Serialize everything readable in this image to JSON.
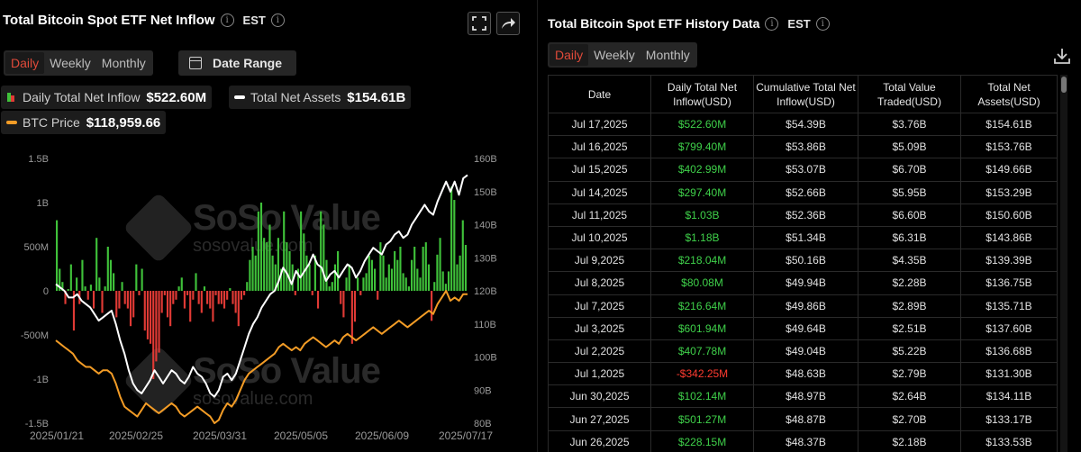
{
  "left": {
    "title": "Total Bitcoin Spot ETF Net Inflow",
    "tz": "EST",
    "tabs": [
      "Daily",
      "Weekly",
      "Monthly"
    ],
    "active_tab": "Daily",
    "date_range_label": "Date Range",
    "legend": {
      "inflow_label": "Daily Total Net Inflow",
      "inflow_value": "$522.60M",
      "assets_label": "Total Net Assets",
      "assets_value": "$154.61B",
      "price_label": "BTC Price",
      "price_value": "$118,959.66"
    }
  },
  "right": {
    "title": "Total Bitcoin Spot ETF History Data",
    "tz": "EST",
    "tabs": [
      "Daily",
      "Weekly",
      "Monthly"
    ],
    "active_tab": "Daily",
    "columns": [
      "Date",
      "Daily Total Net Inflow(USD)",
      "Cumulative Total Net Inflow(USD)",
      "Total Value Traded(USD)",
      "Total Net Assets(USD)"
    ],
    "rows": [
      [
        "Jul 17,2025",
        "$522.60M",
        "$54.39B",
        "$3.76B",
        "$154.61B"
      ],
      [
        "Jul 16,2025",
        "$799.40M",
        "$53.86B",
        "$5.09B",
        "$153.76B"
      ],
      [
        "Jul 15,2025",
        "$402.99M",
        "$53.07B",
        "$6.70B",
        "$149.66B"
      ],
      [
        "Jul 14,2025",
        "$297.40M",
        "$52.66B",
        "$5.95B",
        "$153.29B"
      ],
      [
        "Jul 11,2025",
        "$1.03B",
        "$52.36B",
        "$6.60B",
        "$150.60B"
      ],
      [
        "Jul 10,2025",
        "$1.18B",
        "$51.34B",
        "$6.31B",
        "$143.86B"
      ],
      [
        "Jul 9,2025",
        "$218.04M",
        "$50.16B",
        "$4.35B",
        "$139.39B"
      ],
      [
        "Jul 8,2025",
        "$80.08M",
        "$49.94B",
        "$2.28B",
        "$136.75B"
      ],
      [
        "Jul 7,2025",
        "$216.64M",
        "$49.86B",
        "$2.89B",
        "$135.71B"
      ],
      [
        "Jul 3,2025",
        "$601.94M",
        "$49.64B",
        "$2.51B",
        "$137.60B"
      ],
      [
        "Jul 2,2025",
        "$407.78M",
        "$49.04B",
        "$5.22B",
        "$136.68B"
      ],
      [
        "Jul 1,2025",
        "-$342.25M",
        "$48.63B",
        "$2.79B",
        "$131.30B"
      ],
      [
        "Jun 30,2025",
        "$102.14M",
        "$48.97B",
        "$2.64B",
        "$134.11B"
      ],
      [
        "Jun 27,2025",
        "$501.27M",
        "$48.87B",
        "$2.70B",
        "$133.17B"
      ],
      [
        "Jun 26,2025",
        "$228.15M",
        "$48.37B",
        "$2.18B",
        "$133.53B"
      ]
    ]
  },
  "watermark": {
    "brand": "SoSo Value",
    "domain": "sosovalue.com"
  },
  "colors": {
    "positive": "#3fc13a",
    "negative": "#e03a35",
    "assets_line": "#ffffff",
    "price_line": "#f39c26",
    "accent": "#e04a3a"
  },
  "chart_data": {
    "type": "bar",
    "x_ticks": [
      "2025/01/21",
      "2025/02/25",
      "2025/03/31",
      "2025/05/05",
      "2025/06/09",
      "2025/07/17"
    ],
    "y_left_ticks": [
      "1.5B",
      "1B",
      "500M",
      "0",
      "-500M",
      "-1B",
      "-1.5B"
    ],
    "y_left_range": [
      -1.5,
      1.5
    ],
    "y_right_ticks": [
      "160B",
      "150B",
      "140B",
      "130B",
      "120B",
      "110B",
      "100B",
      "90B",
      "80B"
    ],
    "y_right_range": [
      80,
      160
    ],
    "series": [
      {
        "name": "Daily Total Net Inflow",
        "kind": "bar",
        "unit": "B USD",
        "values": [
          0.8,
          0.25,
          0.1,
          -0.15,
          0.02,
          0.3,
          -0.45,
          0.15,
          -0.15,
          0.35,
          0.05,
          -0.1,
          0.07,
          -0.2,
          0.6,
          0.15,
          -0.25,
          0.05,
          0.5,
          0.35,
          0.2,
          -0.3,
          -0.2,
          0.1,
          -0.15,
          -0.2,
          -0.4,
          -0.3,
          0.3,
          -0.05,
          0.25,
          -0.45,
          -0.55,
          -0.6,
          -1.0,
          -0.8,
          -0.7,
          -0.25,
          -0.05,
          -0.3,
          -0.4,
          -0.15,
          -0.1,
          0.05,
          0.15,
          -0.2,
          -0.05,
          -0.35,
          -0.1,
          0.2,
          -0.15,
          -0.25,
          0.05,
          -0.15,
          -0.2,
          -0.35,
          -0.05,
          -0.15,
          -0.15,
          -0.2,
          -0.1,
          0.03,
          -0.15,
          -0.25,
          -0.4,
          -0.1,
          -0.05,
          0.1,
          0.35,
          0.5,
          0.4,
          0.9,
          1.0,
          0.6,
          0.55,
          0.75,
          0.4,
          0.3,
          0.6,
          0.25,
          0.9,
          0.55,
          0.45,
          0.3,
          -0.05,
          0.25,
          0.9,
          0.65,
          0.4,
          0.3,
          -0.05,
          0.4,
          -0.2,
          0.9,
          0.75,
          0.35,
          0.05,
          0.1,
          0.3,
          0.45,
          -0.15,
          -0.3,
          0.15,
          0.3,
          -0.6,
          -0.35,
          0.15,
          -0.05,
          0.15,
          0.2,
          0.4,
          0.35,
          0.25,
          -0.1,
          0.55,
          0.4,
          0.15,
          0.3,
          0.25,
          0.45,
          0.35,
          0.5,
          0.2,
          0.15,
          0.05,
          0.35,
          0.5,
          0.25,
          0.15,
          0.5,
          0.55,
          0.3,
          -0.34,
          0.1,
          0.41,
          0.6,
          0.22,
          0.08,
          0.22,
          1.18,
          1.03,
          0.3,
          0.4,
          0.8,
          0.52
        ]
      },
      {
        "name": "Total Net Assets",
        "kind": "line",
        "unit": "B USD",
        "values": [
          122,
          121,
          120,
          118,
          118,
          119,
          117,
          116,
          115,
          113,
          111,
          112,
          113,
          114,
          110,
          105,
          101,
          96,
          92,
          90,
          89,
          91,
          93,
          96,
          94,
          92,
          94,
          96,
          95,
          93,
          92,
          94,
          97,
          95,
          94,
          92,
          89,
          88,
          90,
          94,
          95,
          93,
          95,
          99,
          103,
          107,
          110,
          112,
          115,
          117,
          119,
          120,
          123,
          127,
          125,
          122,
          126,
          124,
          126,
          128,
          131,
          128,
          127,
          123,
          125,
          126,
          124,
          126,
          128,
          127,
          124,
          126,
          129,
          131,
          133,
          132,
          131,
          134,
          135,
          137,
          138,
          136,
          137,
          140,
          142,
          144,
          146,
          144,
          143,
          147,
          150,
          153,
          150,
          153,
          149,
          154,
          155
        ]
      },
      {
        "name": "BTC Price",
        "kind": "line",
        "unit": "k USD",
        "values": [
          105,
          104,
          103,
          102,
          101,
          99,
          98,
          97,
          97,
          96,
          95,
          96,
          96,
          95,
          92,
          88,
          85,
          84,
          83,
          82,
          84,
          86,
          85,
          84,
          83,
          84,
          85,
          86,
          85,
          83,
          82,
          83,
          84,
          85,
          84,
          83,
          82,
          80,
          81,
          84,
          86,
          85,
          87,
          90,
          93,
          95,
          96,
          97,
          98,
          99,
          100,
          101,
          103,
          104,
          103,
          102,
          103,
          102,
          104,
          105,
          106,
          105,
          104,
          103,
          104,
          105,
          104,
          106,
          107,
          106,
          105,
          106,
          107,
          108,
          109,
          108,
          107,
          108,
          109,
          110,
          111,
          110,
          109,
          110,
          111,
          112,
          113,
          114,
          113,
          116,
          118,
          120,
          117,
          118,
          117,
          119,
          119
        ]
      }
    ]
  }
}
